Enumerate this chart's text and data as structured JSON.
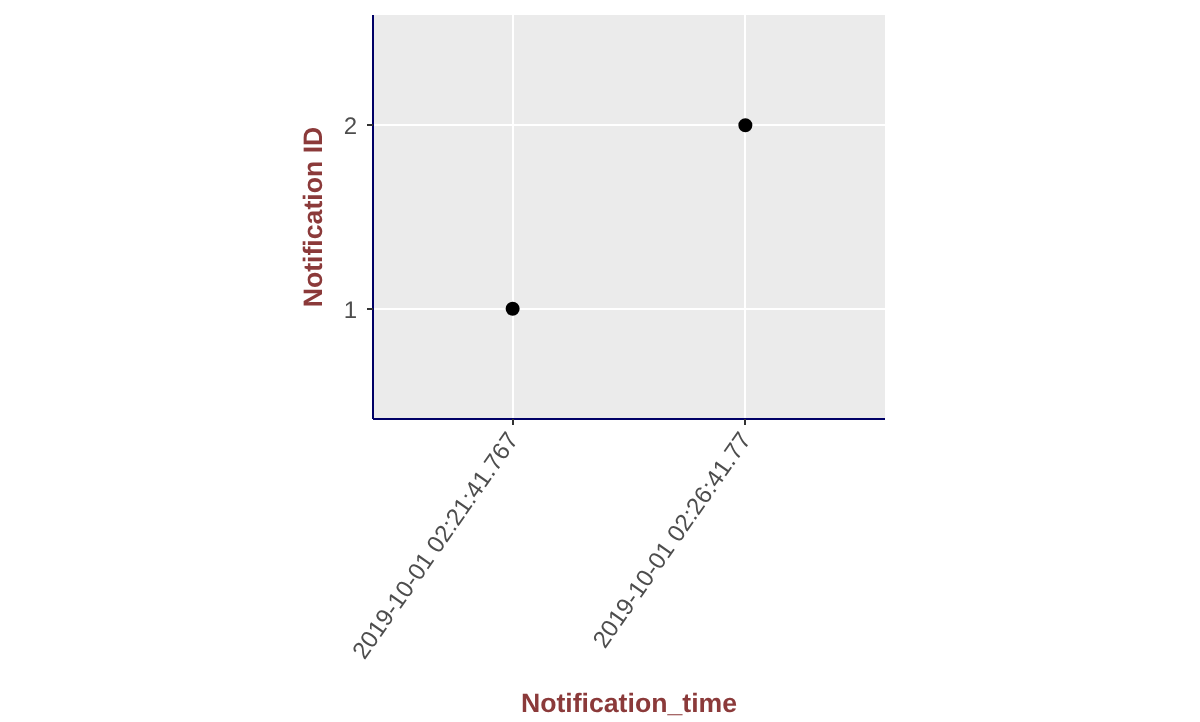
{
  "chart_data": {
    "type": "scatter",
    "xlabel": "Notification_time",
    "ylabel": "Notification ID",
    "categories": [
      "2019-10-01 02:21:41.767",
      "2019-10-01 02:26:41.77"
    ],
    "series": [
      {
        "color": "#000000",
        "values": [
          1,
          2
        ]
      }
    ],
    "ylim": [
      0.4,
      2.6
    ],
    "yticks": [
      1,
      2
    ],
    "grid": true,
    "marker": "circle"
  }
}
